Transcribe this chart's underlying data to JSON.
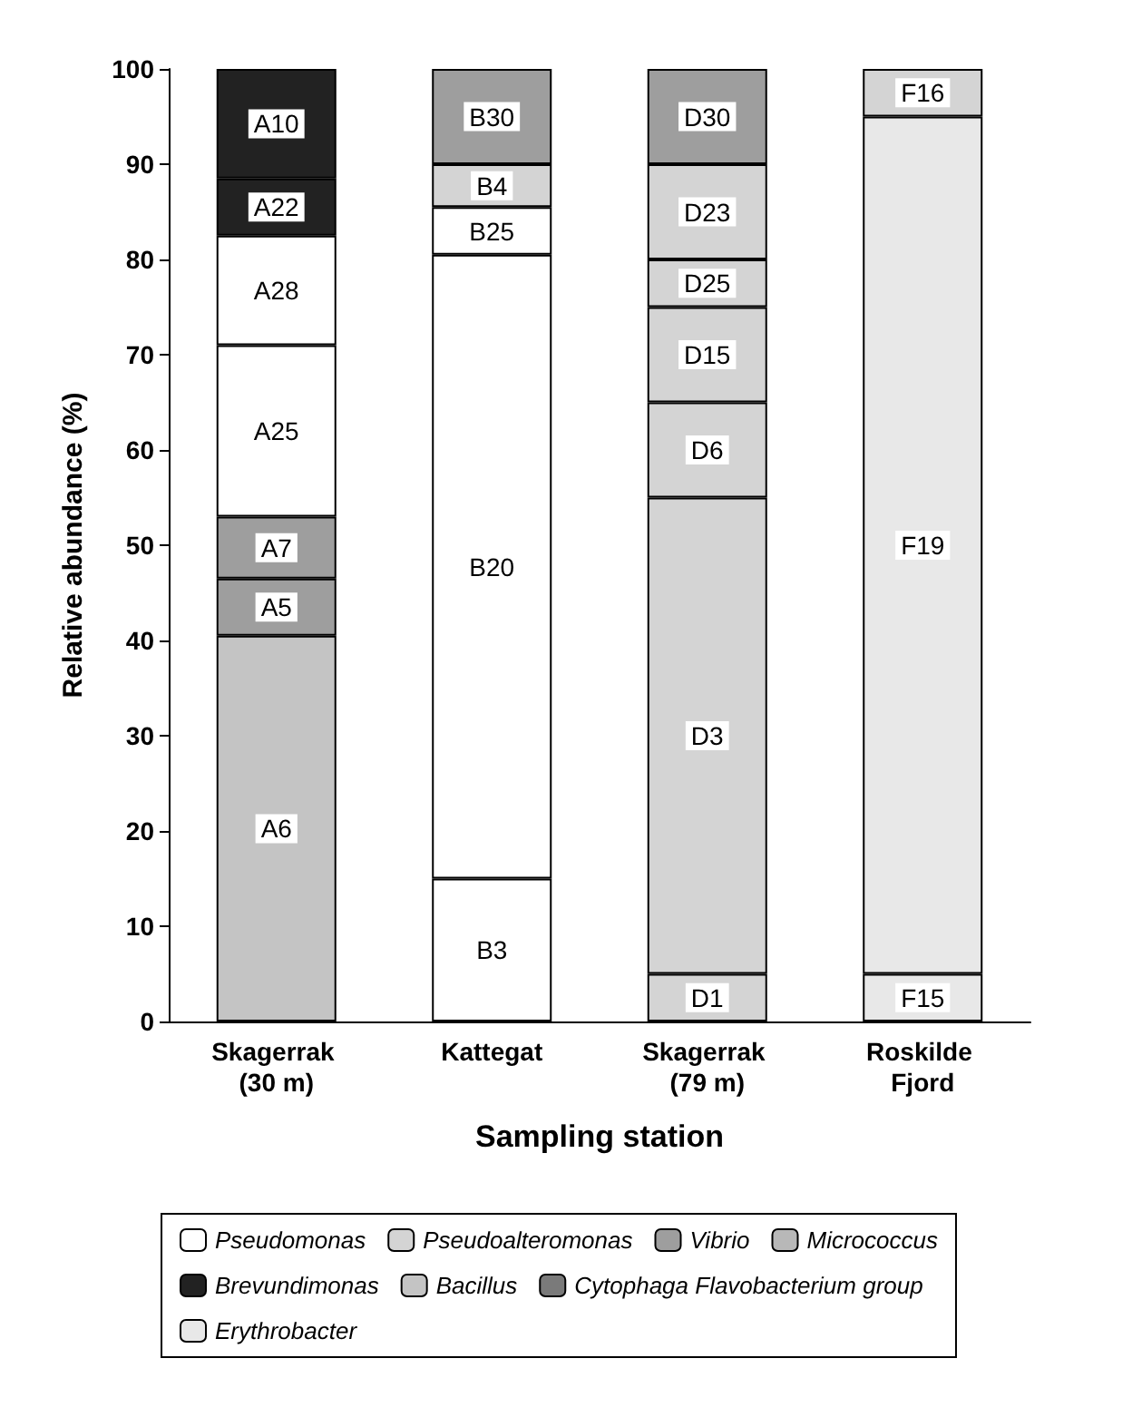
{
  "chart_data": {
    "type": "bar",
    "stacked": true,
    "xlabel": "Sampling station",
    "ylabel": "Relative abundance (%)",
    "categories": [
      "Skagerrak (30 m)",
      "Kattegat",
      "Skagerrak (79 m)",
      "Roskilde Fjord"
    ],
    "ylim": [
      0,
      100
    ],
    "yticks": [
      0,
      10,
      20,
      30,
      40,
      50,
      60,
      70,
      80,
      90,
      100
    ],
    "grid": false,
    "legend": "bottom",
    "series": [
      {
        "name": "Pseudomonas",
        "color": "#ffffff",
        "values": [
          null,
          null,
          null,
          null
        ]
      },
      {
        "name": "Pseudoalteromonas",
        "color": "#d4d4d4",
        "values": [
          null,
          null,
          null,
          null
        ]
      },
      {
        "name": "Vibrio",
        "color": "#9e9e9e",
        "values": [
          null,
          null,
          null,
          null
        ]
      },
      {
        "name": "Micrococcus",
        "color": "#b8b8b8",
        "values": [
          null,
          null,
          null,
          null
        ]
      },
      {
        "name": "Brevundimonas",
        "color": "#222222",
        "values": [
          null,
          null,
          null,
          null
        ]
      },
      {
        "name": "Bacillus",
        "color": "#c4c4c4",
        "values": [
          null,
          null,
          null,
          null
        ]
      },
      {
        "name": "Cytophaga Flavobacterium group",
        "color": "#7a7a7a",
        "values": [
          null,
          null,
          null,
          null
        ]
      },
      {
        "name": "Erythrobacter",
        "color": "#e8e8e8",
        "values": [
          null,
          null,
          null,
          null
        ]
      },
      {
        "color": "#c4c4c4",
        "values": [
          40.5,
          null,
          null,
          null
        ],
        "value_labels": [
          "A6",
          null,
          null,
          null
        ]
      },
      {
        "color": "#9e9e9e",
        "values": [
          6,
          null,
          null,
          null
        ],
        "value_labels": [
          "A5",
          null,
          null,
          null
        ]
      },
      {
        "color": "#9e9e9e",
        "values": [
          6.5,
          null,
          null,
          null
        ],
        "value_labels": [
          "A7",
          null,
          null,
          null
        ]
      },
      {
        "color": "#ffffff",
        "values": [
          18,
          null,
          null,
          null
        ],
        "value_labels": [
          "A25",
          null,
          null,
          null
        ]
      },
      {
        "color": "#ffffff",
        "values": [
          11.5,
          null,
          null,
          null
        ],
        "value_labels": [
          "A28",
          null,
          null,
          null
        ]
      },
      {
        "color": "#222222",
        "values": [
          6,
          null,
          null,
          null
        ],
        "value_labels": [
          "A22",
          null,
          null,
          null
        ]
      },
      {
        "color": "#222222",
        "values": [
          11.5,
          null,
          null,
          null
        ],
        "value_labels": [
          "A10",
          null,
          null,
          null
        ]
      },
      {
        "color": "#ffffff",
        "values": [
          null,
          15,
          null,
          null
        ],
        "value_labels": [
          null,
          "B3",
          null,
          null
        ]
      },
      {
        "color": "#ffffff",
        "values": [
          null,
          65.5,
          null,
          null
        ],
        "value_labels": [
          null,
          "B20",
          null,
          null
        ]
      },
      {
        "color": "#ffffff",
        "values": [
          null,
          5,
          null,
          null
        ],
        "value_labels": [
          null,
          "B25",
          null,
          null
        ]
      },
      {
        "color": "#d4d4d4",
        "values": [
          null,
          4.5,
          null,
          null
        ],
        "value_labels": [
          null,
          "B4",
          null,
          null
        ]
      },
      {
        "color": "#9e9e9e",
        "values": [
          null,
          10,
          null,
          null
        ],
        "value_labels": [
          null,
          "B30",
          null,
          null
        ]
      },
      {
        "color": "#d4d4d4",
        "values": [
          null,
          null,
          5,
          null
        ],
        "value_labels": [
          null,
          null,
          "D1",
          null
        ]
      },
      {
        "color": "#d4d4d4",
        "values": [
          null,
          null,
          50,
          null
        ],
        "value_labels": [
          null,
          null,
          "D3",
          null
        ]
      },
      {
        "color": "#d4d4d4",
        "values": [
          null,
          null,
          10,
          null
        ],
        "value_labels": [
          null,
          null,
          "D6",
          null
        ]
      },
      {
        "color": "#d4d4d4",
        "values": [
          null,
          null,
          10,
          null
        ],
        "value_labels": [
          null,
          null,
          "D15",
          null
        ]
      },
      {
        "color": "#d4d4d4",
        "values": [
          null,
          null,
          5,
          null
        ],
        "value_labels": [
          null,
          null,
          "D25",
          null
        ]
      },
      {
        "color": "#d4d4d4",
        "values": [
          null,
          null,
          10,
          null
        ],
        "value_labels": [
          null,
          null,
          "D23",
          null
        ]
      },
      {
        "color": "#9e9e9e",
        "values": [
          null,
          null,
          10,
          null
        ],
        "value_labels": [
          null,
          null,
          "D30",
          null
        ]
      },
      {
        "color": "#e8e8e8",
        "values": [
          null,
          null,
          null,
          5
        ],
        "value_labels": [
          null,
          null,
          null,
          "F15"
        ]
      },
      {
        "color": "#e8e8e8",
        "values": [
          null,
          null,
          null,
          90
        ],
        "value_labels": [
          null,
          null,
          null,
          "F19"
        ]
      },
      {
        "color": "#d4d4d4",
        "values": [
          null,
          null,
          null,
          5
        ],
        "value_labels": [
          null,
          null,
          null,
          "F16"
        ]
      }
    ]
  }
}
